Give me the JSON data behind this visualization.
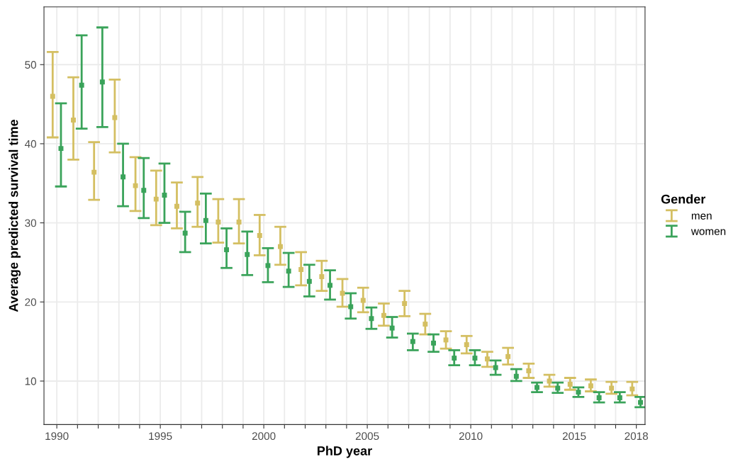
{
  "chart_data": {
    "type": "scatter",
    "xlabel": "PhD year",
    "ylabel": "Average predicted survival time",
    "legend_title": "Gender",
    "legend": "right",
    "grid": true,
    "marker": "square",
    "xlim": [
      1989.38,
      2018.42
    ],
    "ylim": [
      4.5,
      57.3
    ],
    "xticks": [
      1990,
      {
        "value": 1991,
        "label": null
      },
      {
        "value": 1992,
        "label": null
      },
      {
        "value": 1993,
        "label": null
      },
      {
        "value": 1994,
        "label": null
      },
      1995,
      {
        "value": 1996,
        "label": null
      },
      {
        "value": 1997,
        "label": null
      },
      {
        "value": 1998,
        "label": null
      },
      {
        "value": 1999,
        "label": null
      },
      2000,
      {
        "value": 2001,
        "label": null
      },
      {
        "value": 2002,
        "label": null
      },
      {
        "value": 2003,
        "label": null
      },
      {
        "value": 2004,
        "label": null
      },
      2005,
      {
        "value": 2006,
        "label": null
      },
      {
        "value": 2007,
        "label": null
      },
      {
        "value": 2008,
        "label": null
      },
      {
        "value": 2009,
        "label": null
      },
      2010,
      {
        "value": 2011,
        "label": null
      },
      {
        "value": 2012,
        "label": null
      },
      {
        "value": 2013,
        "label": null
      },
      {
        "value": 2014,
        "label": null
      },
      2015,
      {
        "value": 2016,
        "label": null
      },
      {
        "value": 2017,
        "label": null
      },
      2018
    ],
    "yticks": [
      10,
      20,
      30,
      40,
      50
    ],
    "series": [
      {
        "name": "men",
        "color": "#d4bf62",
        "x": [
          1989.8,
          1990.8,
          1991.8,
          1992.8,
          1993.8,
          1994.8,
          1995.8,
          1996.8,
          1997.8,
          1998.8,
          1999.8,
          2000.8,
          2001.8,
          2002.8,
          2003.8,
          2004.8,
          2005.8,
          2006.8,
          2007.8,
          2008.8,
          2009.8,
          2010.8,
          2011.8,
          2012.8,
          2013.8,
          2014.8,
          2015.8,
          2016.8,
          2017.8
        ],
        "values": [
          46.0,
          43.0,
          36.4,
          43.3,
          34.7,
          33.0,
          32.1,
          32.5,
          30.1,
          30.1,
          28.4,
          27.0,
          24.1,
          23.2,
          21.1,
          20.2,
          18.3,
          19.8,
          17.2,
          15.2,
          14.6,
          12.8,
          13.1,
          11.3,
          10.0,
          9.6,
          9.4,
          9.1,
          9.0
        ],
        "errors": [
          [
            40.8,
            51.6
          ],
          [
            38.0,
            48.4
          ],
          [
            32.9,
            40.2
          ],
          [
            38.9,
            48.1
          ],
          [
            31.5,
            38.3
          ],
          [
            29.7,
            36.6
          ],
          [
            29.3,
            35.1
          ],
          [
            29.5,
            35.8
          ],
          [
            27.5,
            33.0
          ],
          [
            27.4,
            33.0
          ],
          [
            25.9,
            31.0
          ],
          [
            24.7,
            29.5
          ],
          [
            22.1,
            26.3
          ],
          [
            21.4,
            25.2
          ],
          [
            19.4,
            22.9
          ],
          [
            18.7,
            21.8
          ],
          [
            17.0,
            19.8
          ],
          [
            18.2,
            21.4
          ],
          [
            15.9,
            18.5
          ],
          [
            14.1,
            16.3
          ],
          [
            13.5,
            15.7
          ],
          [
            11.8,
            13.7
          ],
          [
            12.1,
            14.2
          ],
          [
            10.4,
            12.2
          ],
          [
            9.3,
            10.8
          ],
          [
            8.9,
            10.4
          ],
          [
            8.7,
            10.2
          ],
          [
            8.4,
            9.9
          ],
          [
            8.2,
            9.9
          ]
        ]
      },
      {
        "name": "women",
        "color": "#3aa35a",
        "x": [
          1990.2,
          1991.2,
          1992.2,
          1993.2,
          1994.2,
          1995.2,
          1996.2,
          1997.2,
          1998.2,
          1999.2,
          2000.2,
          2001.2,
          2002.2,
          2003.2,
          2004.2,
          2005.2,
          2006.2,
          2007.2,
          2008.2,
          2009.2,
          2010.2,
          2011.2,
          2012.2,
          2013.2,
          2014.2,
          2015.2,
          2016.2,
          2017.2,
          2018.2
        ],
        "values": [
          39.4,
          47.4,
          47.8,
          35.8,
          34.1,
          33.5,
          28.7,
          30.3,
          26.6,
          26.0,
          24.6,
          23.9,
          22.6,
          22.1,
          19.4,
          17.9,
          16.7,
          15.0,
          14.8,
          12.9,
          12.9,
          11.7,
          10.6,
          9.2,
          9.1,
          8.6,
          7.9,
          7.9,
          7.3
        ],
        "errors": [
          [
            34.6,
            45.1
          ],
          [
            41.9,
            53.7
          ],
          [
            42.1,
            54.7
          ],
          [
            32.1,
            40.0
          ],
          [
            30.6,
            38.2
          ],
          [
            30.0,
            37.5
          ],
          [
            26.3,
            31.4
          ],
          [
            27.4,
            33.7
          ],
          [
            24.3,
            29.3
          ],
          [
            23.4,
            28.9
          ],
          [
            22.5,
            26.8
          ],
          [
            21.9,
            26.2
          ],
          [
            20.7,
            24.7
          ],
          [
            20.3,
            24.0
          ],
          [
            17.9,
            21.1
          ],
          [
            16.6,
            19.3
          ],
          [
            15.5,
            18.1
          ],
          [
            13.9,
            16.0
          ],
          [
            13.7,
            15.9
          ],
          [
            12.0,
            13.9
          ],
          [
            12.0,
            13.9
          ],
          [
            10.8,
            12.6
          ],
          [
            10.0,
            11.5
          ],
          [
            8.6,
            9.8
          ],
          [
            8.5,
            9.8
          ],
          [
            8.0,
            9.2
          ],
          [
            7.3,
            8.6
          ],
          [
            7.3,
            8.6
          ],
          [
            6.7,
            8.0
          ]
        ]
      }
    ]
  }
}
